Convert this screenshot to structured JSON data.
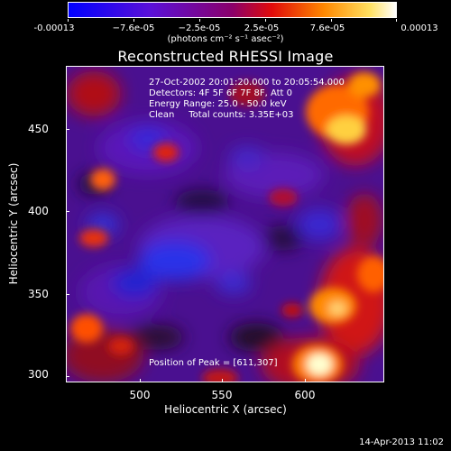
{
  "colorbar": {
    "labels": [
      "-0.00013",
      "−7.6e-05",
      "−2.5e-05",
      "2.5e-05",
      "7.6e-05",
      "0.00013"
    ],
    "units": "(photons cm⁻² s⁻¹ asec⁻²)",
    "colors": [
      "#0000ff",
      "#6a00d0",
      "#b00040",
      "#ff2000",
      "#ff9000",
      "#ffff80",
      "#ffffff"
    ]
  },
  "title": "Reconstructed RHESSI Image",
  "info": {
    "line1": "27-Oct-2002 20:01:20.000 to 20:05:54.000",
    "line2": "Detectors: 4F 5F 6F 7F 8F, Att 0",
    "line3": "Energy Range: 25.0 - 50.0 keV",
    "line4": "Clean     Total counts: 3.35E+03",
    "peak": "Position of Peak = [611,307]"
  },
  "axes": {
    "xlabel": "Heliocentric X (arcsec)",
    "ylabel": "Heliocentric Y (arcsec)",
    "xticks": [
      "500",
      "550",
      "600"
    ],
    "yticks": [
      "450",
      "400",
      "350",
      "300"
    ]
  },
  "timestamp": "14-Apr-2013 11:02"
}
